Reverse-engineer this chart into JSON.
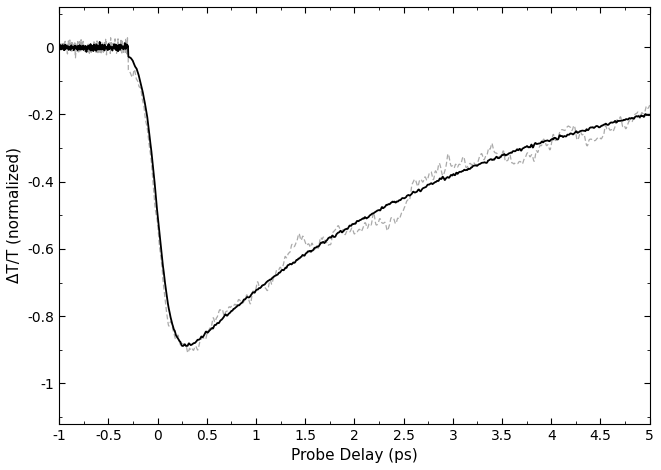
{
  "xlabel": "Probe Delay (ps)",
  "ylabel": "ΔT/T (normalized)",
  "xlim": [
    -1,
    5
  ],
  "ylim": [
    -1.12,
    0.12
  ],
  "xticks": [
    -1,
    -0.5,
    0,
    0.5,
    1,
    1.5,
    2,
    2.5,
    3,
    3.5,
    4,
    4.5,
    5
  ],
  "yticks": [
    0,
    -0.2,
    -0.4,
    -0.6,
    -0.8,
    -1.0
  ],
  "black_line_color": "#000000",
  "grey_line_color": "#aaaaaa",
  "background_color": "#ffffff",
  "figsize": [
    6.61,
    4.7
  ],
  "dpi": 100,
  "seed": 12345
}
